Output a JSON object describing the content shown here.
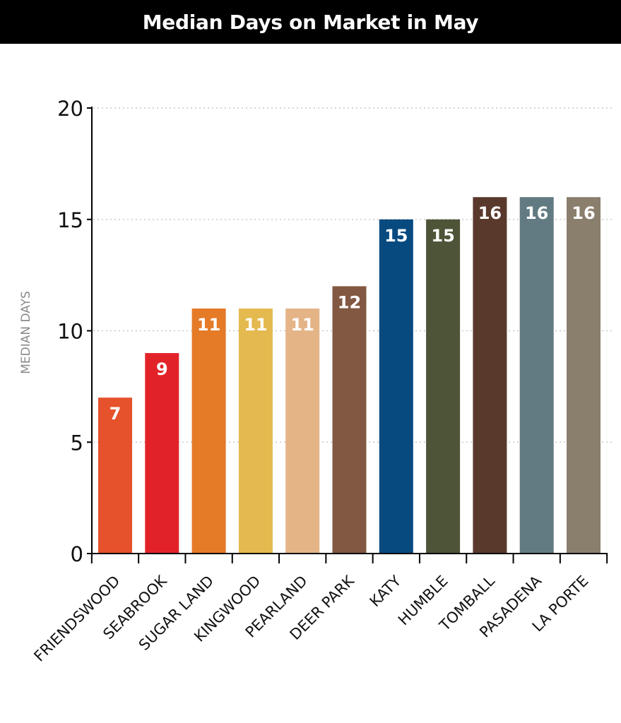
{
  "chart_data": {
    "type": "bar",
    "title": "Median Days on Market in May",
    "xlabel": "",
    "ylabel": "MEDIAN DAYS",
    "ylim": [
      0,
      20
    ],
    "yticks": [
      0,
      5,
      10,
      15,
      20
    ],
    "grid": "horizontal dotted",
    "categories": [
      "FRIENDSWOOD",
      "SEABROOK",
      "SUGAR LAND",
      "KINGWOOD",
      "PEARLAND",
      "DEER PARK",
      "KATY",
      "HUMBLE",
      "TOMBALL",
      "PASADENA",
      "LA PORTE"
    ],
    "values": [
      7,
      9,
      11,
      11,
      11,
      12,
      15,
      15,
      16,
      16,
      16
    ],
    "colors": [
      "#e5522b",
      "#e12329",
      "#e57a27",
      "#e4b94f",
      "#e4b487",
      "#825843",
      "#064a80",
      "#4d5438",
      "#5a392d",
      "#627b82",
      "#8a7e6d"
    ],
    "value_label_color": "#ffffff"
  }
}
